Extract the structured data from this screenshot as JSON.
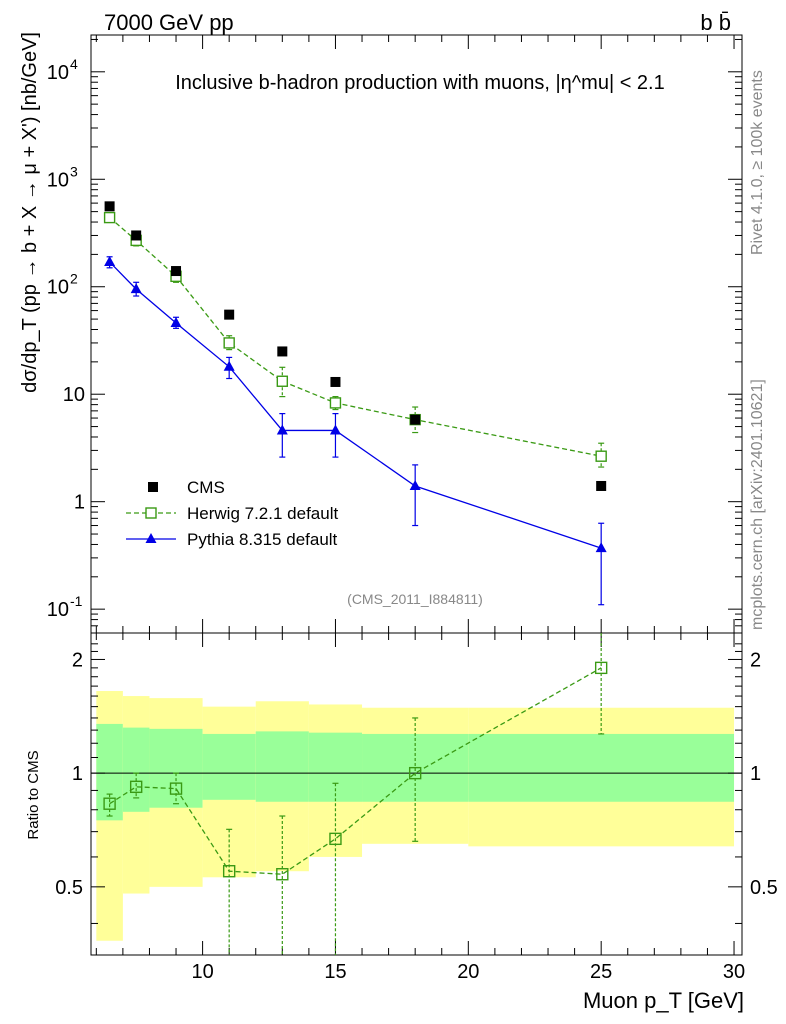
{
  "header": {
    "left": "7000 GeV pp",
    "right": "b b̄"
  },
  "side_right_top": "Rivet 4.1.0, ≥ 100k events",
  "side_right_bottom": "mcplots.cern.ch [arXiv:2401.10621]",
  "chart_data": {
    "type": "line",
    "title": "Inclusive b-hadron production with muons, |η^mu| < 2.1",
    "analysis_tag": "(CMS_2011_I884811)",
    "xlabel": "Muon p_T [GeV]",
    "ylabel": "dσ/dp_T (pp → b + X → μ + X') [nb/GeV]",
    "ratio_ylabel": "Ratio to CMS",
    "xlim": [
      5.8,
      30.3
    ],
    "ylim": [
      0.06,
      22000
    ],
    "ratio_ylim": [
      0.33,
      2.35
    ],
    "x_ticks": [
      10,
      15,
      20,
      25,
      30
    ],
    "y_tick_labels": [
      "10^-1",
      "1",
      "10",
      "10^2",
      "10^3",
      "10^4"
    ],
    "ratio_ticks": [
      0.5,
      1,
      2
    ],
    "bins": [
      {
        "lo": 6,
        "hi": 7,
        "x": 6.5
      },
      {
        "lo": 7,
        "hi": 8,
        "x": 7.5
      },
      {
        "lo": 8,
        "hi": 10,
        "x": 9
      },
      {
        "lo": 10,
        "hi": 12,
        "x": 11
      },
      {
        "lo": 12,
        "hi": 14,
        "x": 13
      },
      {
        "lo": 14,
        "hi": 16,
        "x": 15
      },
      {
        "lo": 16,
        "hi": 20,
        "x": 18
      },
      {
        "lo": 20,
        "hi": 30,
        "x": 25
      }
    ],
    "band_outer": [
      [
        0.36,
        1.65
      ],
      [
        0.48,
        1.6
      ],
      [
        0.5,
        1.58
      ],
      [
        0.53,
        1.5
      ],
      [
        0.55,
        1.55
      ],
      [
        0.6,
        1.52
      ],
      [
        0.65,
        1.49
      ],
      [
        0.64,
        1.49
      ]
    ],
    "band_inner": [
      [
        0.75,
        1.35
      ],
      [
        0.79,
        1.32
      ],
      [
        0.81,
        1.31
      ],
      [
        0.85,
        1.27
      ],
      [
        0.84,
        1.29
      ],
      [
        0.84,
        1.28
      ],
      [
        0.84,
        1.27
      ],
      [
        0.84,
        1.27
      ]
    ],
    "series": [
      {
        "name": "CMS",
        "color": "#000000",
        "marker": "square",
        "values": [
          560,
          300,
          140,
          55,
          25,
          13,
          5.8,
          1.4
        ]
      },
      {
        "name": "Herwig 7.2.1 default",
        "color": "#3a9a14",
        "marker": "open-square",
        "dash": true,
        "values": [
          440,
          270,
          125,
          30,
          13.2,
          8.3,
          5.8,
          2.65
        ],
        "err_lo": [
          400,
          240,
          110,
          26,
          9.5,
          7.2,
          4.4,
          2.1
        ],
        "err_hi": [
          480,
          300,
          140,
          35,
          17.8,
          9.5,
          7.6,
          3.5
        ],
        "ratio": [
          0.83,
          0.92,
          0.91,
          0.55,
          0.54,
          0.67,
          1.0,
          1.9
        ],
        "ratio_lo": [
          0.77,
          0.86,
          0.83,
          0.3,
          0.3,
          0.3,
          0.66,
          1.27
        ],
        "ratio_hi": [
          0.88,
          1.0,
          1.0,
          0.71,
          0.77,
          0.94,
          1.4,
          2.35
        ]
      },
      {
        "name": "Pythia 8.315 default",
        "color": "#0000e6",
        "marker": "triangle",
        "values": [
          170,
          95,
          46,
          18,
          4.6,
          4.6,
          1.4,
          0.37
        ],
        "err_lo": [
          150,
          82,
          41,
          14,
          2.6,
          2.6,
          0.6,
          0.11
        ],
        "err_hi": [
          190,
          110,
          52,
          22,
          6.6,
          6.6,
          2.2,
          0.63
        ]
      }
    ]
  }
}
